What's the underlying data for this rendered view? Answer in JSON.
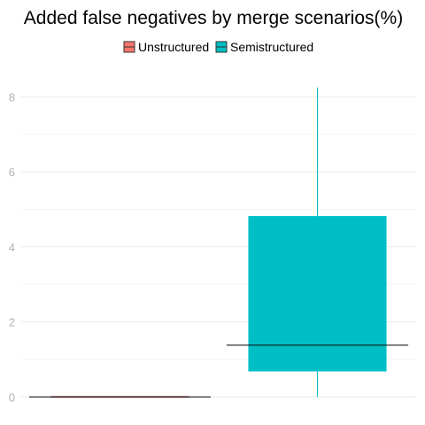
{
  "chart_data": {
    "type": "boxplot",
    "title": "Added false negatives by merge scenarios(%)",
    "xlabel": "",
    "ylabel": "",
    "ylim": [
      -0.3,
      8.55
    ],
    "y_ticks": [
      0,
      2,
      4,
      6,
      8
    ],
    "grid": true,
    "legend_position": "top",
    "series": [
      {
        "name": "Unstructured",
        "color": "#F8766D",
        "min": 0,
        "q1": 0,
        "median": 0,
        "q3": 0,
        "max": 0
      },
      {
        "name": "Semistructured",
        "color": "#00BFC4",
        "min": 0,
        "q1": 0.68,
        "median": 1.38,
        "q3": 4.82,
        "max": 8.25
      }
    ]
  }
}
